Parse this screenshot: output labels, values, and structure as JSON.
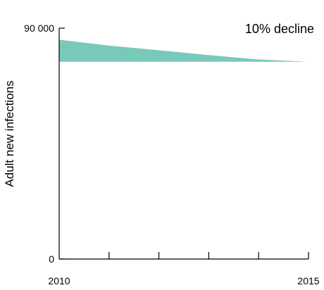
{
  "chart_data": {
    "type": "area",
    "title": "",
    "xlabel": "",
    "ylabel": "Adult new infections",
    "x": [
      2010,
      2011,
      2012,
      2013,
      2014,
      2015
    ],
    "series": [
      {
        "values": [
          85500,
          83200,
          81400,
          79500,
          77800,
          76900
        ]
      }
    ],
    "baseline": 76900,
    "xlim": [
      2010,
      2015
    ],
    "ylim": [
      0,
      90000
    ],
    "y_ticks": [
      {
        "value": 0,
        "label": "0"
      },
      {
        "value": 90000,
        "label": "90 000"
      }
    ],
    "x_tick_labels": [
      {
        "value": 2010,
        "label": "2010"
      },
      {
        "value": 2015,
        "label": "2015"
      }
    ],
    "annotation": "10% decline",
    "colors": {
      "area": "#79C9BB",
      "axis": "#000000"
    },
    "grid": false,
    "legend": "none"
  }
}
